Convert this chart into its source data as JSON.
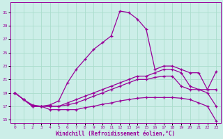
{
  "xlabel": "Windchill (Refroidissement éolien,°C)",
  "background_color": "#cceee8",
  "grid_color": "#aaddcc",
  "line_color": "#990099",
  "xlim": [
    -0.5,
    23.5
  ],
  "ylim": [
    14.5,
    32.5
  ],
  "xticks": [
    0,
    1,
    2,
    3,
    4,
    5,
    6,
    7,
    8,
    9,
    10,
    11,
    12,
    13,
    14,
    15,
    16,
    17,
    18,
    19,
    20,
    21,
    22,
    23
  ],
  "yticks": [
    15,
    17,
    19,
    21,
    23,
    25,
    27,
    29,
    31
  ],
  "line1_x": [
    0,
    1,
    2,
    3,
    4,
    5,
    6,
    7,
    8,
    9,
    10,
    11,
    12,
    13,
    14,
    15,
    16,
    17,
    18,
    19,
    20,
    21,
    22,
    23
  ],
  "line1_y": [
    19.0,
    18.0,
    17.0,
    17.0,
    17.2,
    17.8,
    20.5,
    22.5,
    24.0,
    25.5,
    26.5,
    27.5,
    31.2,
    31.0,
    30.0,
    28.5,
    22.5,
    23.0,
    23.0,
    22.5,
    22.0,
    22.0,
    19.5,
    19.5
  ],
  "line2_x": [
    0,
    1,
    2,
    3,
    4,
    5,
    6,
    7,
    8,
    9,
    10,
    11,
    12,
    13,
    14,
    15,
    16,
    17,
    18,
    19,
    20,
    21,
    22,
    23
  ],
  "line2_y": [
    19.0,
    18.0,
    17.2,
    17.0,
    17.0,
    17.0,
    17.5,
    18.0,
    18.5,
    19.0,
    19.5,
    20.0,
    20.5,
    21.0,
    21.5,
    21.5,
    22.0,
    22.5,
    22.5,
    22.0,
    20.0,
    19.5,
    19.5,
    22.2
  ],
  "line3_x": [
    0,
    1,
    2,
    3,
    4,
    5,
    6,
    7,
    8,
    9,
    10,
    11,
    12,
    13,
    14,
    15,
    16,
    17,
    18,
    19,
    20,
    21,
    22,
    23
  ],
  "line3_y": [
    19.0,
    18.0,
    17.0,
    17.0,
    17.0,
    17.0,
    17.2,
    17.5,
    18.0,
    18.5,
    19.0,
    19.5,
    20.0,
    20.5,
    21.0,
    21.0,
    21.3,
    21.5,
    21.5,
    20.0,
    19.5,
    19.5,
    19.0,
    17.0
  ],
  "line4_x": [
    0,
    1,
    2,
    3,
    4,
    5,
    6,
    7,
    8,
    9,
    10,
    11,
    12,
    13,
    14,
    15,
    16,
    17,
    18,
    19,
    20,
    21,
    22,
    23
  ],
  "line4_y": [
    19.0,
    18.0,
    17.0,
    17.0,
    16.5,
    16.5,
    16.5,
    16.5,
    16.8,
    17.0,
    17.3,
    17.5,
    17.8,
    18.0,
    18.2,
    18.3,
    18.3,
    18.3,
    18.3,
    18.2,
    18.0,
    17.5,
    17.0,
    14.8
  ]
}
